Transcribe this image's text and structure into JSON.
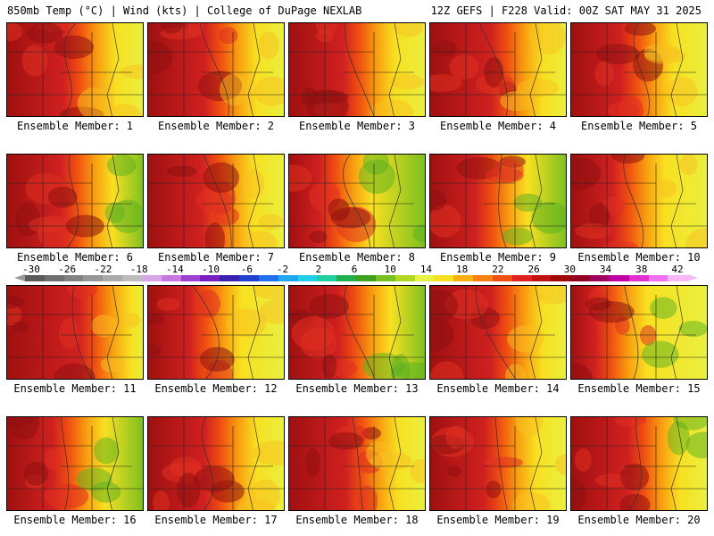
{
  "header": {
    "left": "850mb Temp (°C) | Wind (kts) | College of DuPage NEXLAB",
    "right": "12Z GEFS | F228 Valid: 00Z SAT MAY 31 2025"
  },
  "members": [
    {
      "label": "Ensemble Member: 1",
      "hot": 0.75,
      "cool": 0.25
    },
    {
      "label": "Ensemble Member: 2",
      "hot": 0.75,
      "cool": 0.2
    },
    {
      "label": "Ensemble Member: 3",
      "hot": 0.7,
      "cool": 0.2
    },
    {
      "label": "Ensemble Member: 4",
      "hot": 0.8,
      "cool": 0.15
    },
    {
      "label": "Ensemble Member: 5",
      "hot": 0.65,
      "cool": 0.25
    },
    {
      "label": "Ensemble Member: 6",
      "hot": 0.7,
      "cool": 0.55
    },
    {
      "label": "Ensemble Member: 7",
      "hot": 0.7,
      "cool": 0.3
    },
    {
      "label": "Ensemble Member: 8",
      "hot": 0.4,
      "cool": 0.6
    },
    {
      "label": "Ensemble Member: 9",
      "hot": 0.6,
      "cool": 0.6
    },
    {
      "label": "Ensemble Member: 10",
      "hot": 0.55,
      "cool": 0.2
    },
    {
      "label": "Ensemble Member: 11",
      "hot": 0.95,
      "cool": 0.15
    },
    {
      "label": "Ensemble Member: 12",
      "hot": 0.55,
      "cool": 0.35
    },
    {
      "label": "Ensemble Member: 13",
      "hot": 0.65,
      "cool": 0.5
    },
    {
      "label": "Ensemble Member: 14",
      "hot": 0.8,
      "cool": 0.1
    },
    {
      "label": "Ensemble Member: 15",
      "hot": 0.3,
      "cool": 0.4
    },
    {
      "label": "Ensemble Member: 16",
      "hot": 0.6,
      "cool": 0.5
    },
    {
      "label": "Ensemble Member: 17",
      "hot": 0.75,
      "cool": 0.2
    },
    {
      "label": "Ensemble Member: 18",
      "hot": 0.75,
      "cool": 0.35
    },
    {
      "label": "Ensemble Member: 19",
      "hot": 0.7,
      "cool": 0.3
    },
    {
      "label": "Ensemble Member: 20",
      "hot": 0.75,
      "cool": 0.4
    }
  ],
  "colorbar": {
    "ticks": [
      "-30",
      "-26",
      "-22",
      "-18",
      "-14",
      "-10",
      "-6",
      "-2",
      "2",
      "6",
      "10",
      "14",
      "18",
      "22",
      "26",
      "30",
      "34",
      "38",
      "42"
    ],
    "colors": [
      "#5a5a5a",
      "#6e6e6e",
      "#828282",
      "#969696",
      "#aaaaaa",
      "#bdbdbd",
      "#d8a6e8",
      "#c878e0",
      "#a040d0",
      "#7a20c0",
      "#3a20b0",
      "#2040d0",
      "#2070f0",
      "#20a8f0",
      "#20d0e8",
      "#20d0a0",
      "#20b050",
      "#40a020",
      "#78c020",
      "#b0d820",
      "#e8f040",
      "#f8e020",
      "#f8b010",
      "#f88010",
      "#f05010",
      "#e02020",
      "#c01010",
      "#a00808",
      "#900020",
      "#a00060",
      "#c000a0",
      "#e030d0",
      "#f070f0",
      "#f8b8f8"
    ]
  }
}
